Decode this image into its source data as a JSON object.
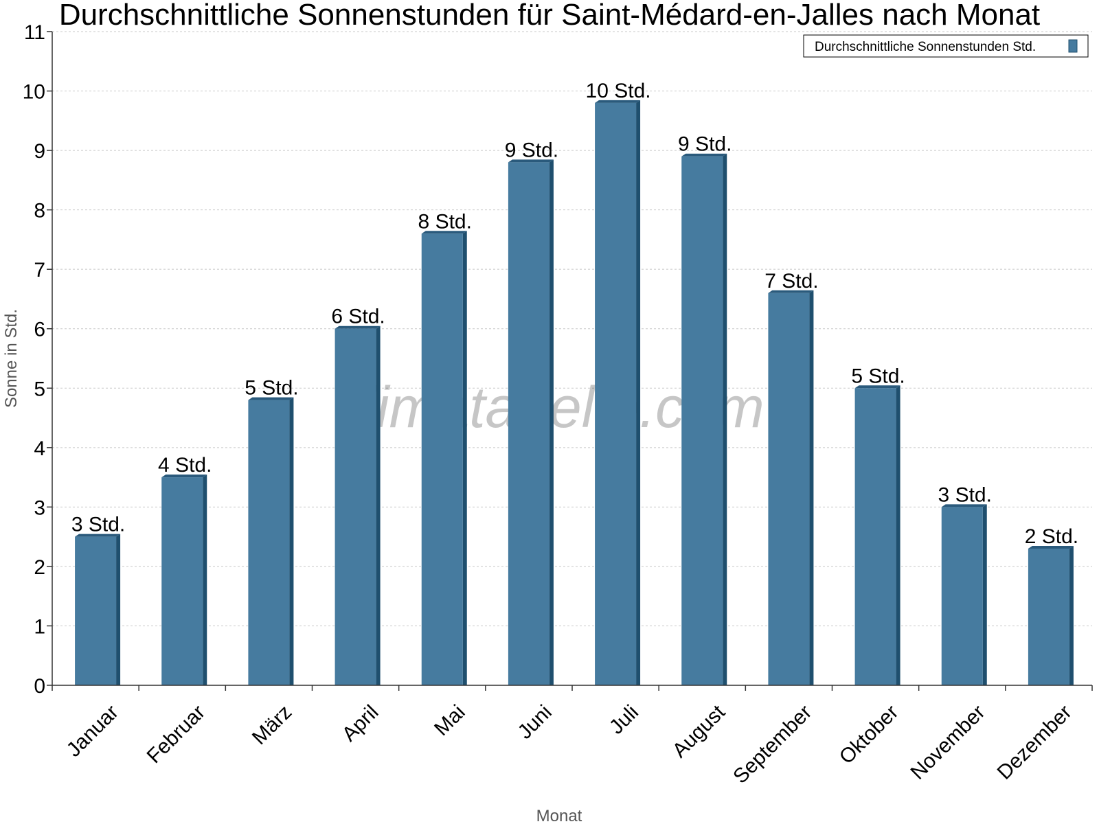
{
  "chart_data": {
    "type": "bar",
    "title": "Durchschnittliche Sonnenstunden für Saint-Médard-en-Jalles nach Monat",
    "xlabel": "Monat",
    "ylabel": "Sonne in Std.",
    "ylim": [
      0,
      11
    ],
    "yticks": [
      0,
      1,
      2,
      3,
      4,
      5,
      6,
      7,
      8,
      9,
      10,
      11
    ],
    "grid": true,
    "legend_position": "top-right",
    "categories": [
      "Januar",
      "Februar",
      "März",
      "April",
      "Mai",
      "Juni",
      "Juli",
      "August",
      "September",
      "Oktober",
      "November",
      "Dezember"
    ],
    "series": [
      {
        "name": "Durchschnittliche Sonnenstunden Std.",
        "color": "#467b9f",
        "values": [
          2.5,
          3.5,
          4.8,
          6.0,
          7.6,
          8.8,
          9.8,
          8.9,
          6.6,
          5.0,
          3.0,
          2.3
        ],
        "data_labels": [
          "3 Std.",
          "4 Std.",
          "5 Std.",
          "6 Std.",
          "8 Std.",
          "9 Std.",
          "10 Std.",
          "9 Std.",
          "7 Std.",
          "5 Std.",
          "3 Std.",
          "2 Std."
        ]
      }
    ]
  },
  "watermark": "klimatabelle.com",
  "colors": {
    "bar": "#467b9f",
    "bar_side": "#1f4f6e",
    "bar_top": "#2a5a7c",
    "grid": "#c8c8c8",
    "axis": "#333333"
  }
}
